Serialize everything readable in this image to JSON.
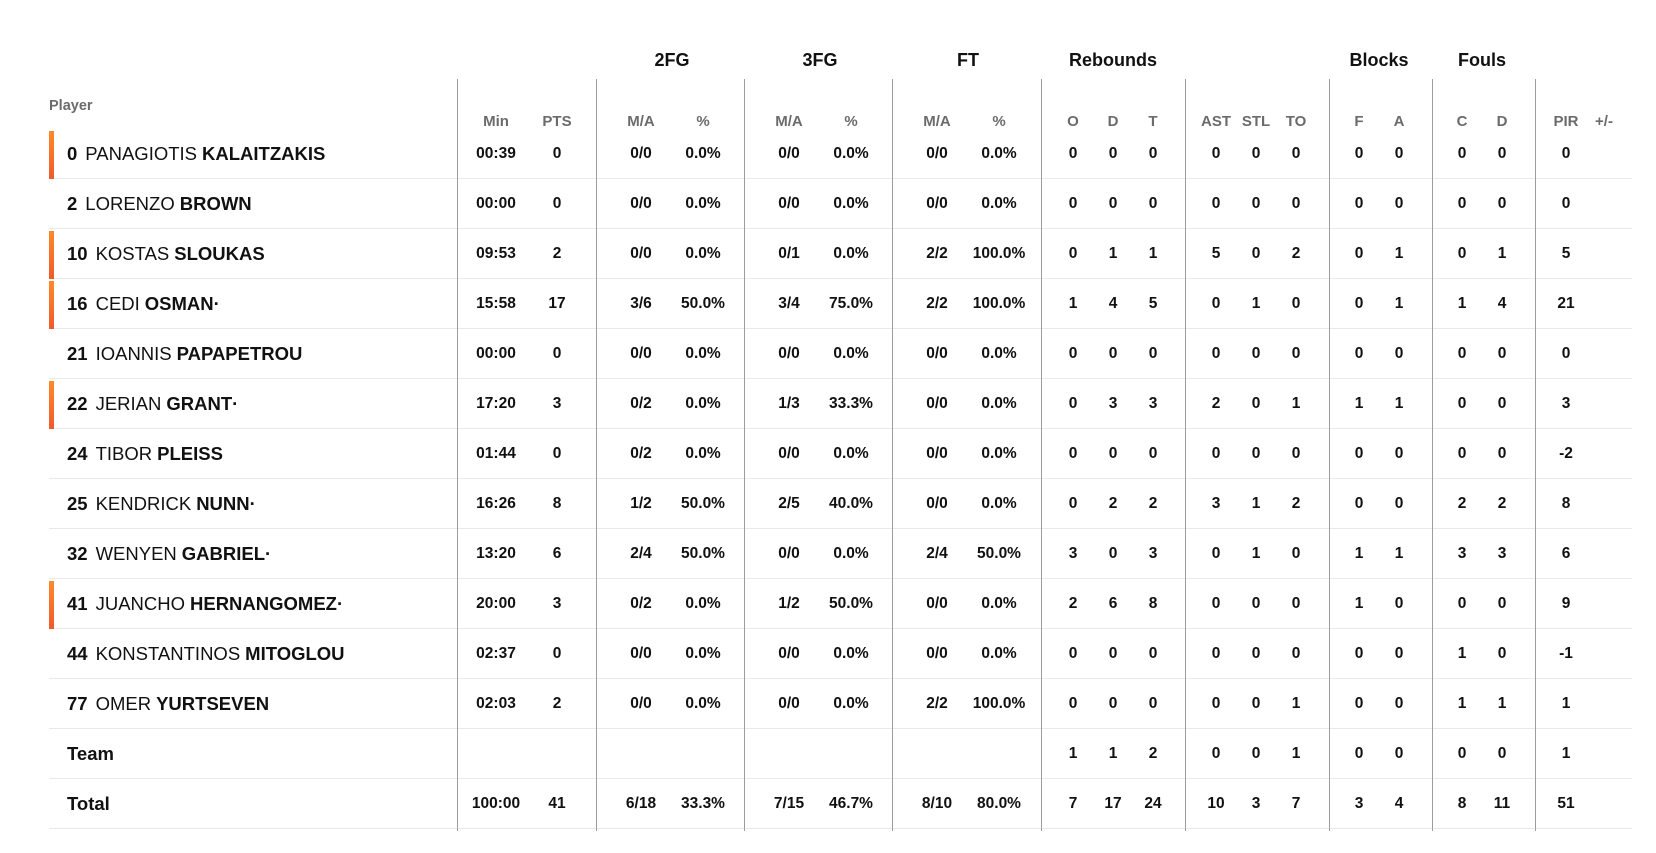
{
  "groups": [
    "2FG",
    "3FG",
    "FT",
    "Rebounds",
    "Blocks",
    "Fouls"
  ],
  "player_header": "Player",
  "columns": [
    "Min",
    "PTS",
    "M/A",
    "%",
    "M/A",
    "%",
    "M/A",
    "%",
    "O",
    "D",
    "T",
    "AST",
    "STL",
    "TO",
    "F",
    "A",
    "C",
    "D",
    "PIR",
    "+/-"
  ],
  "players": [
    {
      "num": "0",
      "first": "PANAGIOTIS",
      "last": "KALAITZAKIS",
      "mark": "",
      "starter": true,
      "stats": [
        "00:39",
        "0",
        "0/0",
        "0.0%",
        "0/0",
        "0.0%",
        "0/0",
        "0.0%",
        "0",
        "0",
        "0",
        "0",
        "0",
        "0",
        "0",
        "0",
        "0",
        "0",
        "0",
        ""
      ]
    },
    {
      "num": "2",
      "first": "LORENZO",
      "last": "BROWN",
      "mark": "",
      "starter": false,
      "stats": [
        "00:00",
        "0",
        "0/0",
        "0.0%",
        "0/0",
        "0.0%",
        "0/0",
        "0.0%",
        "0",
        "0",
        "0",
        "0",
        "0",
        "0",
        "0",
        "0",
        "0",
        "0",
        "0",
        ""
      ]
    },
    {
      "num": "10",
      "first": "KOSTAS",
      "last": "SLOUKAS",
      "mark": "",
      "starter": true,
      "stats": [
        "09:53",
        "2",
        "0/0",
        "0.0%",
        "0/1",
        "0.0%",
        "2/2",
        "100.0%",
        "0",
        "1",
        "1",
        "5",
        "0",
        "2",
        "0",
        "1",
        "0",
        "1",
        "5",
        ""
      ]
    },
    {
      "num": "16",
      "first": "CEDI",
      "last": "OSMAN",
      "mark": "·",
      "starter": true,
      "stats": [
        "15:58",
        "17",
        "3/6",
        "50.0%",
        "3/4",
        "75.0%",
        "2/2",
        "100.0%",
        "1",
        "4",
        "5",
        "0",
        "1",
        "0",
        "0",
        "1",
        "1",
        "4",
        "21",
        ""
      ]
    },
    {
      "num": "21",
      "first": "IOANNIS",
      "last": "PAPAPETROU",
      "mark": "",
      "starter": false,
      "stats": [
        "00:00",
        "0",
        "0/0",
        "0.0%",
        "0/0",
        "0.0%",
        "0/0",
        "0.0%",
        "0",
        "0",
        "0",
        "0",
        "0",
        "0",
        "0",
        "0",
        "0",
        "0",
        "0",
        ""
      ]
    },
    {
      "num": "22",
      "first": "JERIAN",
      "last": "GRANT",
      "mark": "·",
      "starter": true,
      "stats": [
        "17:20",
        "3",
        "0/2",
        "0.0%",
        "1/3",
        "33.3%",
        "0/0",
        "0.0%",
        "0",
        "3",
        "3",
        "2",
        "0",
        "1",
        "1",
        "1",
        "0",
        "0",
        "3",
        ""
      ]
    },
    {
      "num": "24",
      "first": "TIBOR",
      "last": "PLEISS",
      "mark": "",
      "starter": false,
      "stats": [
        "01:44",
        "0",
        "0/2",
        "0.0%",
        "0/0",
        "0.0%",
        "0/0",
        "0.0%",
        "0",
        "0",
        "0",
        "0",
        "0",
        "0",
        "0",
        "0",
        "0",
        "0",
        "-2",
        ""
      ]
    },
    {
      "num": "25",
      "first": "KENDRICK",
      "last": "NUNN",
      "mark": "·",
      "starter": false,
      "stats": [
        "16:26",
        "8",
        "1/2",
        "50.0%",
        "2/5",
        "40.0%",
        "0/0",
        "0.0%",
        "0",
        "2",
        "2",
        "3",
        "1",
        "2",
        "0",
        "0",
        "2",
        "2",
        "8",
        ""
      ]
    },
    {
      "num": "32",
      "first": "WENYEN",
      "last": "GABRIEL",
      "mark": "·",
      "starter": false,
      "stats": [
        "13:20",
        "6",
        "2/4",
        "50.0%",
        "0/0",
        "0.0%",
        "2/4",
        "50.0%",
        "3",
        "0",
        "3",
        "0",
        "1",
        "0",
        "1",
        "1",
        "3",
        "3",
        "6",
        ""
      ]
    },
    {
      "num": "41",
      "first": "JUANCHO",
      "last": "HERNANGOMEZ",
      "mark": "·",
      "starter": true,
      "stats": [
        "20:00",
        "3",
        "0/2",
        "0.0%",
        "1/2",
        "50.0%",
        "0/0",
        "0.0%",
        "2",
        "6",
        "8",
        "0",
        "0",
        "0",
        "1",
        "0",
        "0",
        "0",
        "9",
        ""
      ]
    },
    {
      "num": "44",
      "first": "KONSTANTINOS",
      "last": "MITOGLOU",
      "mark": "",
      "starter": false,
      "stats": [
        "02:37",
        "0",
        "0/0",
        "0.0%",
        "0/0",
        "0.0%",
        "0/0",
        "0.0%",
        "0",
        "0",
        "0",
        "0",
        "0",
        "0",
        "0",
        "0",
        "1",
        "0",
        "-1",
        ""
      ]
    },
    {
      "num": "77",
      "first": "OMER",
      "last": "YURTSEVEN",
      "mark": "",
      "starter": false,
      "stats": [
        "02:03",
        "2",
        "0/0",
        "0.0%",
        "0/0",
        "0.0%",
        "2/2",
        "100.0%",
        "0",
        "0",
        "0",
        "0",
        "0",
        "1",
        "0",
        "0",
        "1",
        "1",
        "1",
        ""
      ]
    }
  ],
  "team": {
    "label": "Team",
    "stats": [
      "",
      "",
      "",
      "",
      "",
      "",
      "",
      "",
      "1",
      "1",
      "2",
      "0",
      "0",
      "1",
      "0",
      "0",
      "0",
      "0",
      "1",
      ""
    ]
  },
  "total": {
    "label": "Total",
    "stats": [
      "100:00",
      "41",
      "6/18",
      "33.3%",
      "7/15",
      "46.7%",
      "8/10",
      "80.0%",
      "7",
      "17",
      "24",
      "10",
      "3",
      "7",
      "3",
      "4",
      "8",
      "11",
      "51",
      ""
    ]
  }
}
